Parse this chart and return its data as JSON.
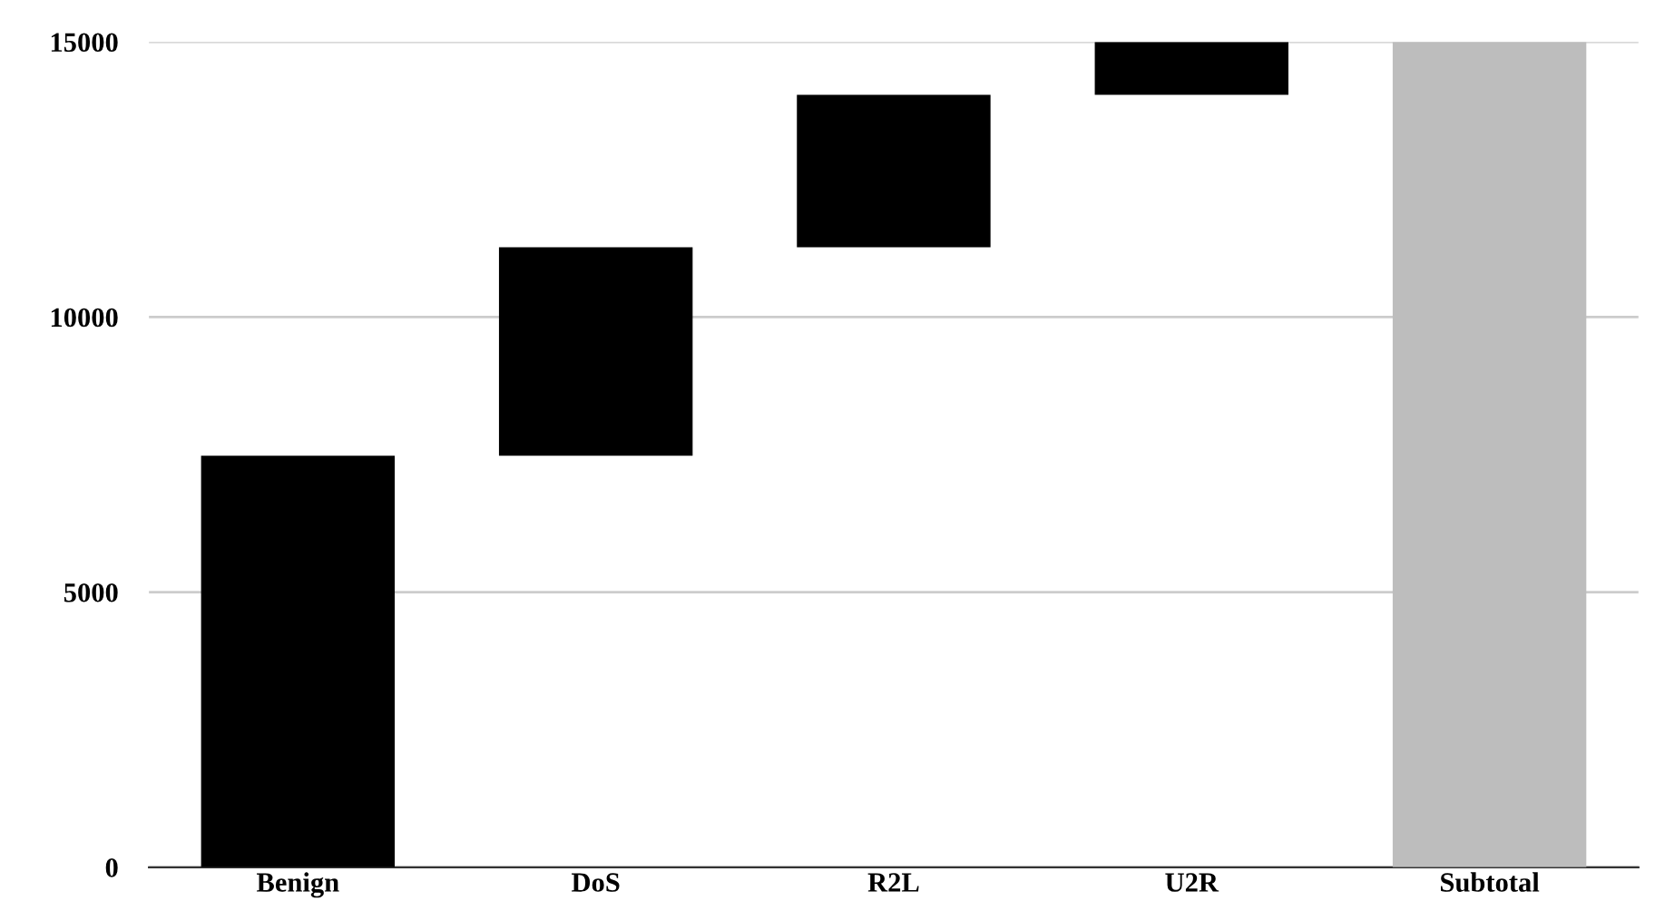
{
  "chart_data": {
    "type": "bar",
    "categories": [
      "Benign",
      "DoS",
      "R2L",
      "U2R",
      "Subtotal"
    ],
    "values": [
      7480,
      3790,
      2770,
      960,
      15000
    ],
    "base": [
      0,
      7480,
      11270,
      14040,
      0
    ],
    "colors": [
      "#000000",
      "#000000",
      "#000000",
      "#000000",
      "#bdbdbd"
    ],
    "ylim": [
      0,
      15000
    ],
    "yticks": [
      0,
      5000,
      10000,
      15000
    ],
    "grid": "y"
  }
}
